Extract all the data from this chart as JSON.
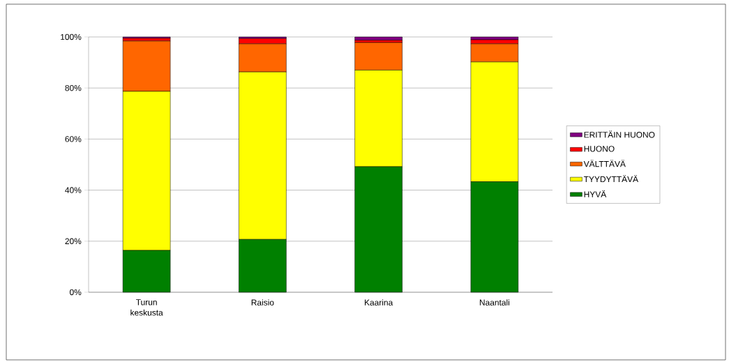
{
  "chart_data": {
    "type": "bar",
    "stacked": true,
    "categories": [
      "Turun keskusta",
      "Raisio",
      "Kaarina",
      "Naantali"
    ],
    "series": [
      {
        "name": "HYVÄ",
        "color": "#008000",
        "values": [
          16.4,
          20.7,
          49.2,
          43.3
        ]
      },
      {
        "name": "TYYDYTTÄVÄ",
        "color": "#ffff00",
        "values": [
          62.3,
          65.6,
          37.8,
          46.9
        ]
      },
      {
        "name": "VÄLTTÄVÄ",
        "color": "#ff6600",
        "values": [
          19.7,
          11.0,
          10.8,
          7.1
        ]
      },
      {
        "name": "HUONO",
        "color": "#ff0000",
        "values": [
          1.1,
          2.1,
          0.9,
          1.6
        ]
      },
      {
        "name": "ERITTÄIN HUONO",
        "color": "#800080",
        "values": [
          0.5,
          0.6,
          1.3,
          1.1
        ]
      }
    ],
    "ylim": [
      0,
      100
    ],
    "yticks": [
      {
        "value": 0,
        "label": "0%"
      },
      {
        "value": 20,
        "label": "20%"
      },
      {
        "value": 40,
        "label": "40%"
      },
      {
        "value": 60,
        "label": "60%"
      },
      {
        "value": 80,
        "label": "80%"
      },
      {
        "value": 100,
        "label": "100%"
      }
    ],
    "grid": "y",
    "legend": "right"
  }
}
